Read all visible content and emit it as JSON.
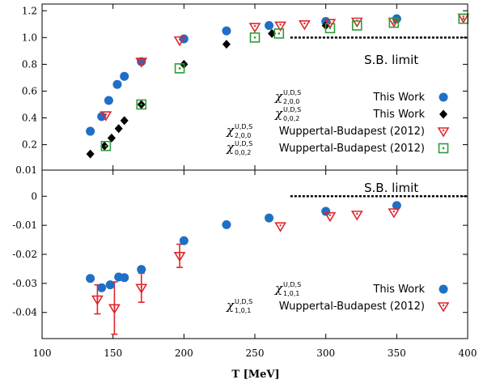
{
  "chart_data": [
    {
      "type": "scatter",
      "panel": "top",
      "xlim": [
        100,
        400
      ],
      "ylim": [
        0.01,
        1.25
      ],
      "yticks": [
        "0.01",
        "0.2",
        "0.4",
        "0.6",
        "0.8",
        "1.0",
        "1.2"
      ],
      "ref_line": {
        "label": "S.B. limit",
        "y": 1.0,
        "x_start": 275
      },
      "legend_position": "bottom-right",
      "series": [
        {
          "name": "This Work",
          "symbol_label": {
            "base": "χ",
            "sup": "U,D,S",
            "sub": "2,0,0"
          },
          "marker": "filled-circle",
          "color": "#1f6fc6",
          "x": [
            134,
            142,
            147,
            153,
            158,
            170,
            200,
            230,
            260,
            300,
            350
          ],
          "y": [
            0.3,
            0.41,
            0.53,
            0.65,
            0.71,
            0.82,
            0.99,
            1.05,
            1.09,
            1.12,
            1.14
          ]
        },
        {
          "name": "This Work",
          "symbol_label": {
            "base": "χ",
            "sup": "U,D,S",
            "sub": "0,0,2"
          },
          "marker": "filled-diamond",
          "color": "#000000",
          "x": [
            134,
            144,
            149,
            154,
            158,
            170,
            200,
            230,
            262,
            300
          ],
          "y": [
            0.13,
            0.19,
            0.25,
            0.32,
            0.38,
            0.5,
            0.8,
            0.95,
            1.03,
            1.09
          ]
        },
        {
          "name": "Wuppertal-Budapest (2012)",
          "symbol_label": {
            "base": "χ",
            "sup": "U,D,S",
            "sub": "2,0,0"
          },
          "marker": "open-triangle-down",
          "color": "#e0262b",
          "x": [
            145,
            170,
            197,
            250,
            268,
            285,
            303,
            322,
            348,
            397
          ],
          "y": [
            0.42,
            0.82,
            0.98,
            1.08,
            1.09,
            1.1,
            1.11,
            1.12,
            1.12,
            1.15
          ]
        },
        {
          "name": "Wuppertal-Budapest (2012)",
          "symbol_label": {
            "base": "χ",
            "sup": "U,D,S",
            "sub": "0,0,2"
          },
          "marker": "open-square",
          "color": "#2e9a3a",
          "x": [
            145,
            170,
            197,
            250,
            267,
            303,
            322,
            348,
            397
          ],
          "y": [
            0.19,
            0.5,
            0.77,
            1.0,
            1.03,
            1.07,
            1.09,
            1.11,
            1.14
          ]
        }
      ]
    },
    {
      "type": "scatter",
      "panel": "bottom",
      "xlabel": "T [MeV]",
      "xlim": [
        100,
        400
      ],
      "xticks": [
        100,
        150,
        200,
        250,
        300,
        350,
        400
      ],
      "ylim": [
        -0.049,
        0.009
      ],
      "yticks": [
        "0",
        "-0.01",
        "-0.02",
        "-0.03",
        "-0.04"
      ],
      "ref_line": {
        "label": "S.B. limit",
        "y": 0.0,
        "x_start": 275
      },
      "legend_position": "bottom-right",
      "series": [
        {
          "name": "This Work",
          "symbol_label": {
            "base": "χ",
            "sup": "U,D,S",
            "sub": "1,0,1"
          },
          "marker": "filled-circle",
          "color": "#1f6fc6",
          "x": [
            134,
            142,
            148,
            154,
            158,
            170,
            200,
            230,
            260,
            300,
            350
          ],
          "y": [
            -0.0283,
            -0.0315,
            -0.0305,
            -0.0278,
            -0.028,
            -0.0252,
            -0.0153,
            -0.0098,
            -0.0075,
            -0.0052,
            -0.0032
          ]
        },
        {
          "name": "Wuppertal-Budapest (2012)",
          "symbol_label": {
            "base": "χ",
            "sup": "U,D,S",
            "sub": "1,0,1"
          },
          "marker": "open-triangle-down",
          "color": "#e0262b",
          "x": [
            139,
            151,
            170,
            197,
            268,
            303,
            322,
            348
          ],
          "y": [
            -0.0355,
            -0.0385,
            -0.0315,
            -0.0205,
            -0.0103,
            -0.0068,
            -0.0063,
            -0.0055
          ],
          "err": [
            0.005,
            0.009,
            0.005,
            0.004,
            0,
            0,
            0,
            0
          ]
        }
      ]
    }
  ]
}
